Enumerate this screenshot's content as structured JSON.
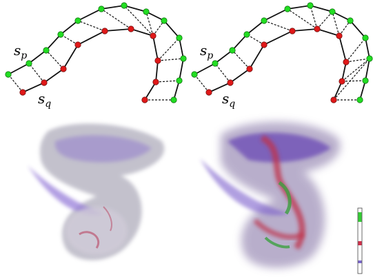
{
  "panels": [
    {
      "label_p": {
        "base": "s",
        "sub": "p"
      },
      "label_q": {
        "base": "s",
        "sub": "q"
      }
    },
    {
      "label_p": {
        "base": "s",
        "sub": "p"
      },
      "label_q": {
        "base": "s",
        "sub": "q"
      }
    }
  ]
}
